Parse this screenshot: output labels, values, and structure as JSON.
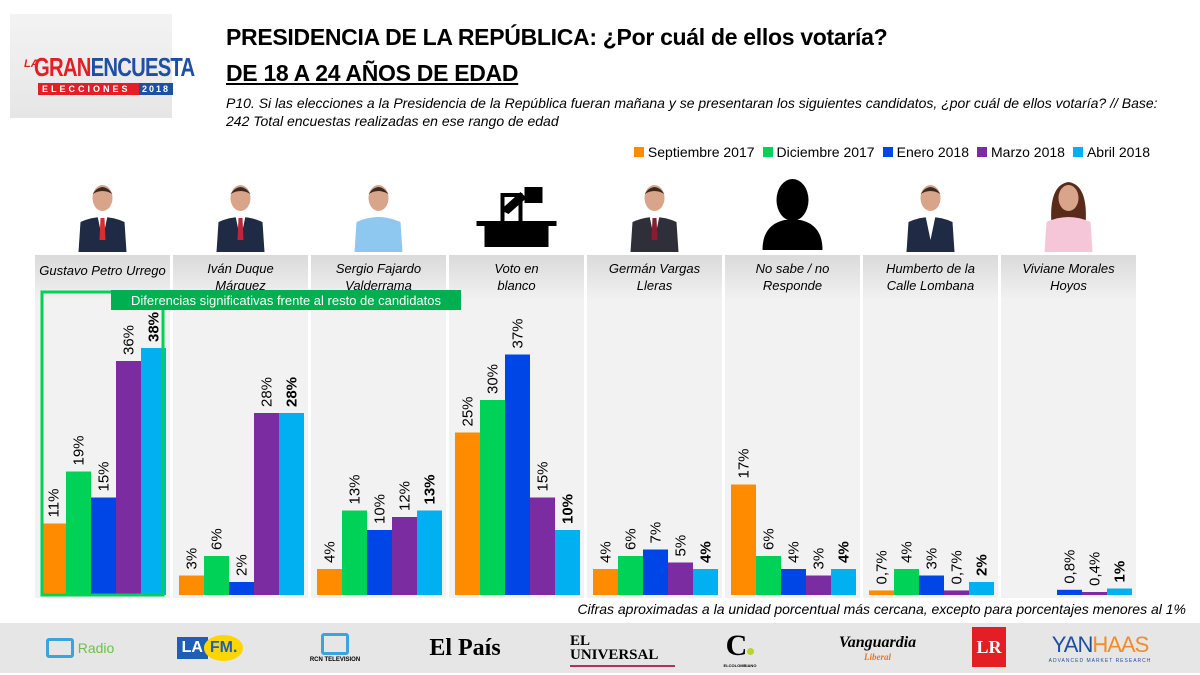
{
  "brand": {
    "logo_la": "LA",
    "logo_gran": "GRAN",
    "logo_encuesta": "ENCUESTA",
    "logo_elecciones": "ELECCIONES",
    "logo_year": "2018"
  },
  "header": {
    "title_line1": "PRESIDENCIA DE LA REPÚBLICA: ¿Por cuál de ellos votaría?",
    "title_line2": "DE 18 A 24 AÑOS DE EDAD",
    "question": "P10. Si las elecciones a la Presidencia de la República fueran mañana y se presentaran los siguientes candidatos, ¿por cuál de ellos votaría?  // Base: 242 Total encuestas realizadas en ese rango de edad"
  },
  "chart_data": {
    "type": "bar",
    "title": "PRESIDENCIA DE LA REPÚBLICA: ¿Por cuál de ellos votaría? DE 18 A 24 AÑOS DE EDAD",
    "xlabel": "",
    "ylabel": "",
    "ylim": [
      0,
      40
    ],
    "grid": false,
    "legend_position": "top-right",
    "categories": [
      "Gustavo Petro Urrego",
      "Iván Duque Márquez",
      "Sergio Fajardo Valderrama",
      "Voto en blanco",
      "Germán Vargas Lleras",
      "No sabe / no Responde",
      "Humberto de la Calle Lombana",
      "Viviane Morales Hoyos"
    ],
    "category_icons": [
      "candidate-photo",
      "candidate-photo",
      "candidate-photo",
      "ballot-box-icon",
      "candidate-photo",
      "silhouette-icon",
      "candidate-photo",
      "candidate-photo"
    ],
    "series": [
      {
        "name": "Septiembre 2017",
        "color": "#FF8C00",
        "values": [
          11,
          3,
          4,
          25,
          4,
          17,
          0.7,
          null
        ],
        "labels": [
          "11%",
          "3%",
          "4%",
          "25%",
          "4%",
          "17%",
          "0,7%",
          null
        ]
      },
      {
        "name": "Diciembre 2017",
        "color": "#00D257",
        "values": [
          19,
          6,
          13,
          30,
          6,
          6,
          4,
          null
        ],
        "labels": [
          "19%",
          "6%",
          "13%",
          "30%",
          "6%",
          "6%",
          "4%",
          null
        ]
      },
      {
        "name": "Enero 2018",
        "color": "#0046E6",
        "values": [
          15,
          2,
          10,
          37,
          7,
          4,
          3,
          0.8
        ],
        "labels": [
          "15%",
          "2%",
          "10%",
          "37%",
          "7%",
          "4%",
          "3%",
          "0,8%"
        ]
      },
      {
        "name": "Marzo 2018",
        "color": "#7B2CA0",
        "values": [
          36,
          28,
          12,
          15,
          5,
          3,
          0.7,
          0.4
        ],
        "labels": [
          "36%",
          "28%",
          "12%",
          "15%",
          "5%",
          "3%",
          "0,7%",
          "0,4%"
        ]
      },
      {
        "name": "Abril 2018",
        "color": "#00B0F0",
        "values": [
          38,
          28,
          13,
          10,
          4,
          4,
          2,
          1
        ],
        "labels": [
          "38%",
          "28%",
          "13%",
          "10%",
          "4%",
          "4%",
          "2%",
          "1%"
        ],
        "bold_labels": true
      }
    ],
    "annotation": {
      "text": "Diferencias significativas frente al resto de candidatos",
      "highlight_category": "Gustavo Petro Urrego",
      "color": "#00B050"
    }
  },
  "footnote": "Cifras aproximadas a la unidad porcentual más cercana, excepto para porcentajes menores al 1%",
  "sponsors": {
    "rcn_radio": "Radio",
    "la_fm_la": "LA",
    "la_fm_fm": "FM.",
    "rcn_tv": "RCN TELEVISION",
    "el_pais": "El País",
    "el_universal_1": "EL",
    "el_universal_2": "UNIVERSAL",
    "el_colombiano": "C",
    "el_colombiano_sub": "ELCOLOMBIANO",
    "vanguardia": "Vanguardia",
    "vanguardia_sub": "Liberal",
    "la_republica": "LR",
    "yanhaas_1": "YAN",
    "yanhaas_2": "HAAS",
    "yanhaas_sub": "ADVANCED MARKET RESEARCH"
  }
}
